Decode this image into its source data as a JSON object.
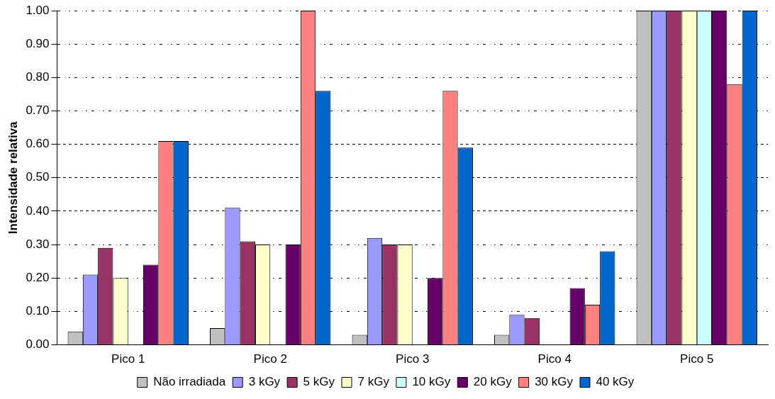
{
  "chart_data": {
    "type": "bar",
    "ylabel": "Intensidade relativa",
    "categories": [
      "Pico 1",
      "Pico 2",
      "Pico 3",
      "Pico 4",
      "Pico 5"
    ],
    "series": [
      {
        "name": "Não irradiada",
        "color": "#c0c0c0",
        "values": [
          0.04,
          0.05,
          0.03,
          0.03,
          1.0
        ]
      },
      {
        "name": "3 kGy",
        "color": "#9999ff",
        "values": [
          0.21,
          0.41,
          0.32,
          0.09,
          1.0
        ]
      },
      {
        "name": "5 kGy",
        "color": "#993366",
        "values": [
          0.29,
          0.31,
          0.3,
          0.08,
          1.0
        ]
      },
      {
        "name": "7 kGy",
        "color": "#ffffcc",
        "values": [
          0.2,
          0.3,
          0.3,
          0.0,
          1.0
        ]
      },
      {
        "name": "10 kGy",
        "color": "#ccffff",
        "values": [
          0.0,
          0.0,
          0.0,
          0.0,
          1.0
        ]
      },
      {
        "name": "20 kGy",
        "color": "#660066",
        "values": [
          0.24,
          0.3,
          0.2,
          0.17,
          1.0
        ]
      },
      {
        "name": "30 kGy",
        "color": "#ff8080",
        "values": [
          0.61,
          1.0,
          0.76,
          0.12,
          0.78
        ]
      },
      {
        "name": "40 kGy",
        "color": "#0066cc",
        "values": [
          0.61,
          0.76,
          0.59,
          0.28,
          1.0
        ]
      }
    ],
    "ylim": [
      0,
      1
    ],
    "yticks": [
      {
        "value": 0,
        "label": "0.00"
      },
      {
        "value": 0.1,
        "label": "0.10"
      },
      {
        "value": 0.2,
        "label": "0.20"
      },
      {
        "value": 0.3,
        "label": "0.30"
      },
      {
        "value": 0.4,
        "label": "0.40"
      },
      {
        "value": 0.5,
        "label": "0.50"
      },
      {
        "value": 0.6,
        "label": "0.60"
      },
      {
        "value": 0.7,
        "label": "0.70"
      },
      {
        "value": 0.8,
        "label": "0.80"
      },
      {
        "value": 0.9,
        "label": "0.90"
      },
      {
        "value": 1,
        "label": "1.00"
      }
    ],
    "grid": "y",
    "legend": "bottom"
  }
}
